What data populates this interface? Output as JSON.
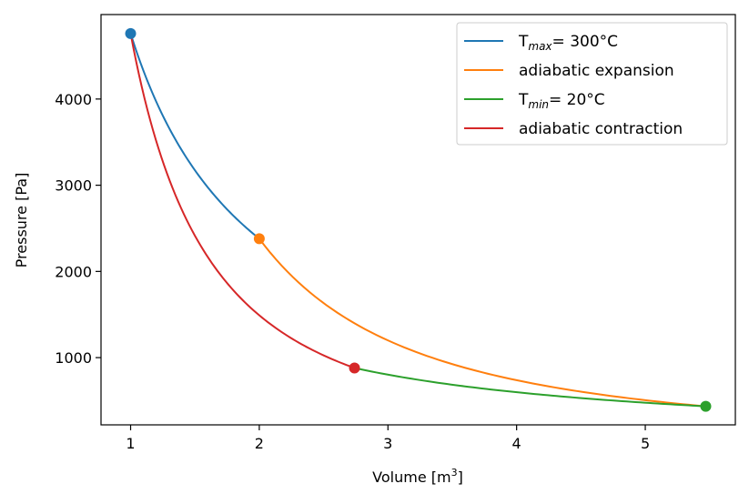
{
  "chart_data": {
    "type": "line",
    "title": "",
    "xlabel": "Volume [m",
    "xlabel_sup": "3",
    "xlabel_end": "]",
    "ylabel": "Pressure [Pa]",
    "xlim": [
      0.77,
      5.7
    ],
    "ylim": [
      220,
      4980
    ],
    "xticks": [
      1,
      2,
      3,
      4,
      5
    ],
    "yticks": [
      1000,
      2000,
      3000,
      4000
    ],
    "grid": false,
    "legend_position": "top-right",
    "series": [
      {
        "name": "T= 300°C",
        "label_main": "T",
        "label_sub": "max",
        "label_rest": "= 300°C",
        "color": "#1f77b4",
        "kind": "isothermal",
        "v_start": 1.0,
        "v_end": 2.0,
        "p_start": 4760,
        "p_end": 2380
      },
      {
        "name": "adiabatic expansion",
        "label_main": "adiabatic expansion",
        "color": "#ff7f0e",
        "kind": "adiabatic",
        "v_start": 2.0,
        "v_end": 5.47,
        "p_start": 2380,
        "p_end": 435
      },
      {
        "name": "T= 20°C",
        "label_main": "T",
        "label_sub": "min",
        "label_rest": "= 20°C",
        "color": "#2ca02c",
        "kind": "isothermal",
        "v_start": 5.47,
        "v_end": 2.74,
        "p_start": 435,
        "p_end": 880
      },
      {
        "name": "adiabatic contraction",
        "label_main": "adiabatic contraction",
        "color": "#d62728",
        "kind": "adiabatic",
        "v_start": 2.74,
        "v_end": 1.0,
        "p_start": 880,
        "p_end": 4760
      }
    ],
    "points": [
      {
        "x": 1.0,
        "y": 4760,
        "color": "#1f77b4"
      },
      {
        "x": 2.0,
        "y": 2380,
        "color": "#ff7f0e"
      },
      {
        "x": 5.47,
        "y": 435,
        "color": "#2ca02c"
      },
      {
        "x": 2.74,
        "y": 880,
        "color": "#d62728"
      }
    ]
  }
}
